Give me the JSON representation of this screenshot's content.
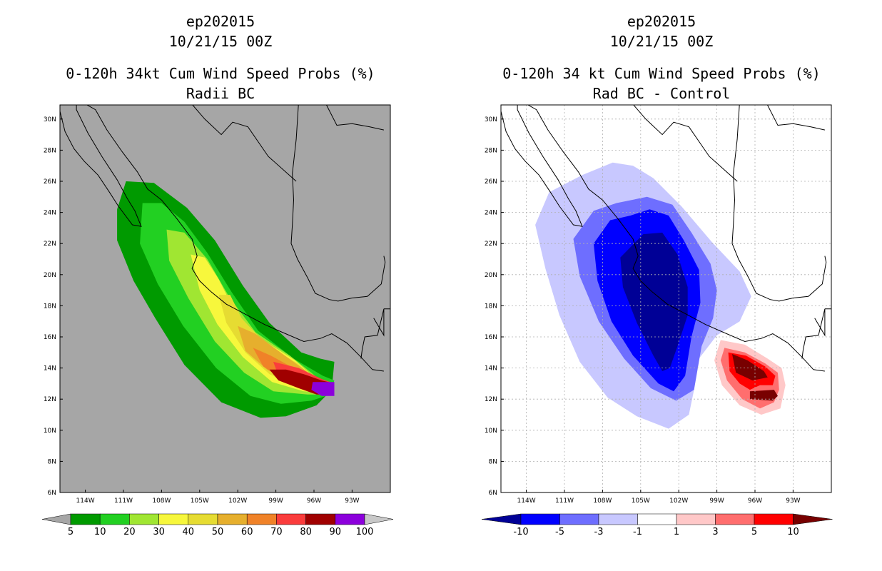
{
  "colors": {
    "land_bg": "#a6a6a6",
    "coast": "#000000",
    "grid": "#b0b0b0",
    "prob": [
      "#a6a6a6",
      "#009a00",
      "#22d022",
      "#a0e632",
      "#f7f73c",
      "#e6dc32",
      "#e6af2d",
      "#f08228",
      "#fa3c3c",
      "#a00000",
      "#8c00dc",
      "#c8c8c8"
    ],
    "diff": [
      "#000096",
      "#0000ff",
      "#6e6eff",
      "#c8c8ff",
      "#ffffff",
      "#ffc8c8",
      "#ff6e6e",
      "#ff0000",
      "#780000"
    ]
  },
  "left": {
    "storm_id": "ep202015",
    "datetime": "10/21/15 00Z",
    "title": "0-120h 34kt Cum Wind Speed Probs (%)",
    "subtitle": "Radii BC",
    "colorbar_labels": [
      "5",
      "10",
      "20",
      "30",
      "40",
      "50",
      "60",
      "70",
      "80",
      "90",
      "100"
    ]
  },
  "right": {
    "storm_id": "ep202015",
    "datetime": "10/21/15 00Z",
    "title": "0-120h 34 kt Cum Wind Speed Probs (%)",
    "subtitle": "Rad BC - Control",
    "colorbar_labels": [
      "-10",
      "-5",
      "-3",
      "-1",
      "1",
      "3",
      "5",
      "10"
    ]
  },
  "axes": {
    "lat_labels": [
      "30N",
      "28N",
      "26N",
      "24N",
      "22N",
      "20N",
      "18N",
      "16N",
      "14N",
      "12N",
      "10N",
      "8N",
      "6N"
    ],
    "lon_labels": [
      "114W",
      "111W",
      "108W",
      "105W",
      "102W",
      "99W",
      "96W",
      "93W"
    ]
  }
}
